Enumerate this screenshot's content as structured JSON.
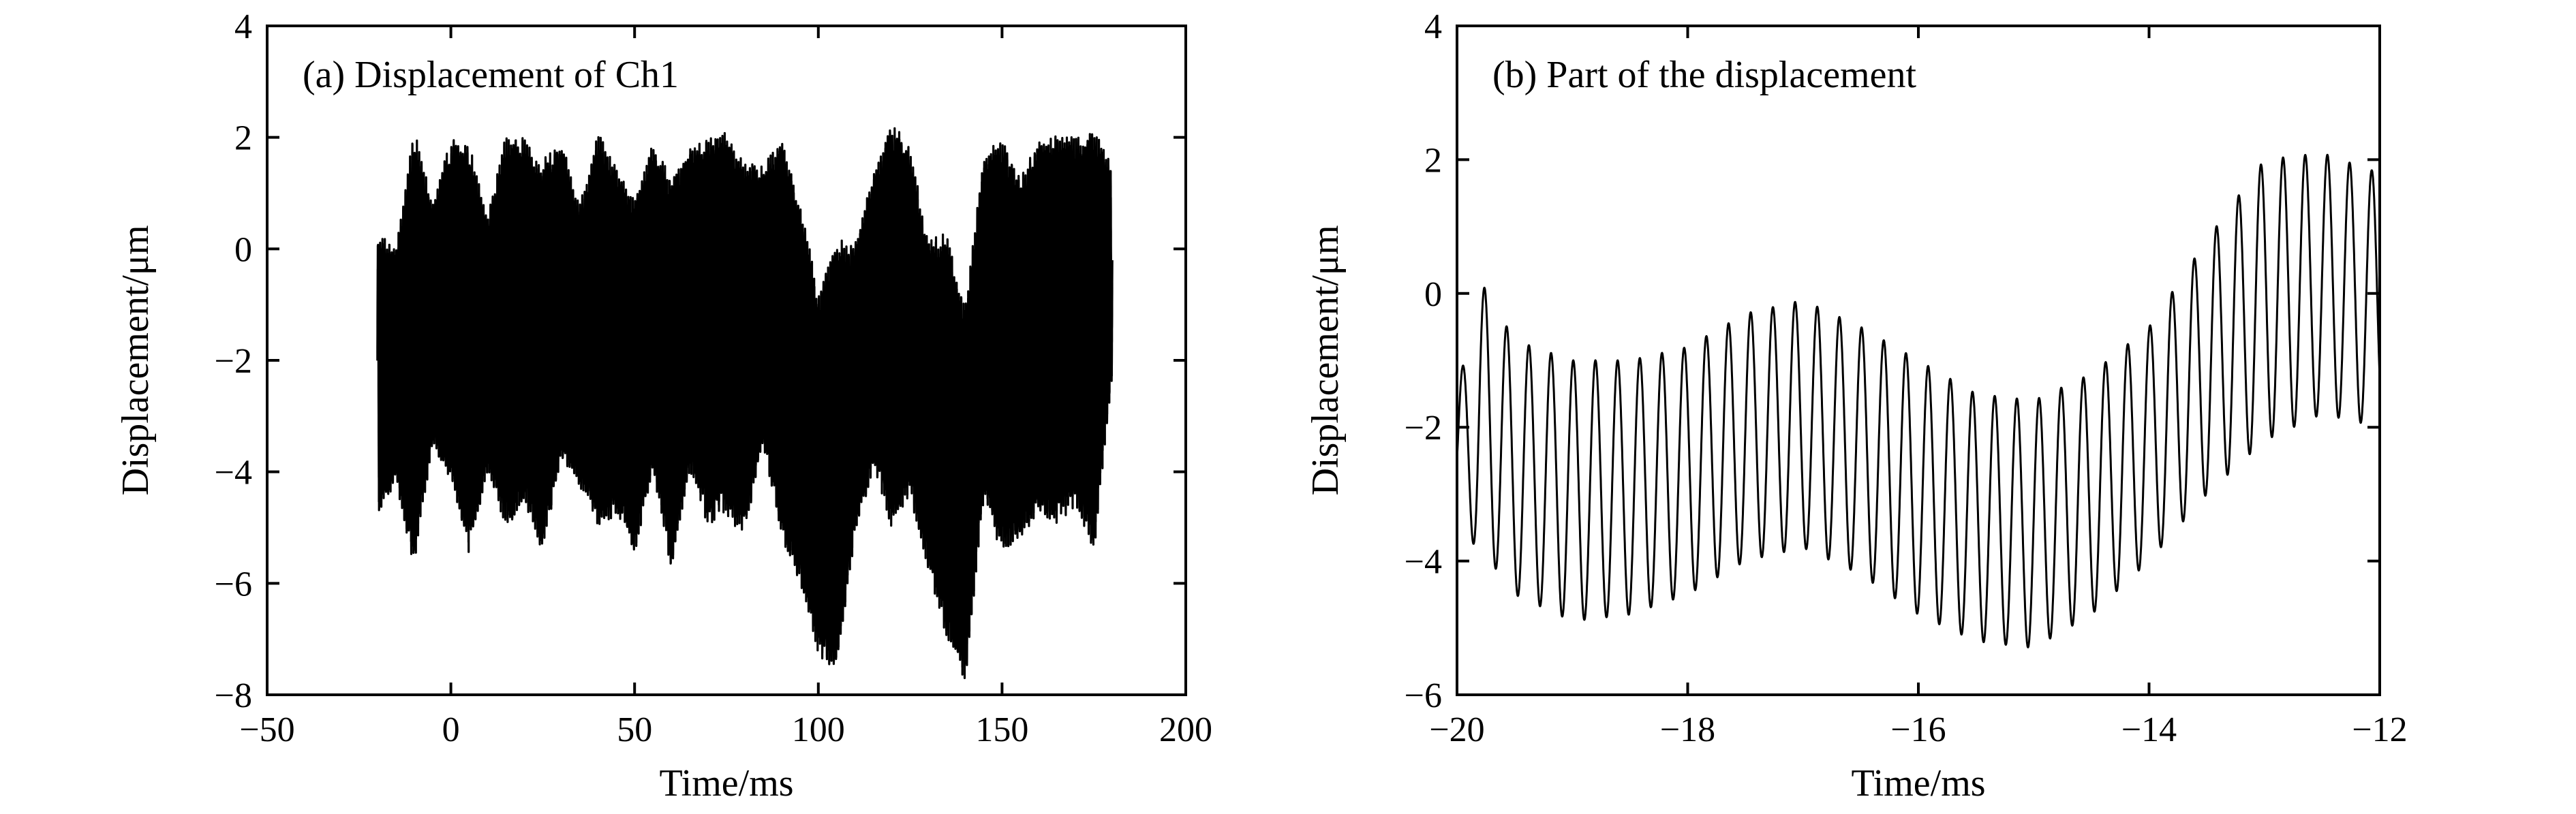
{
  "chart_data": [
    {
      "type": "line",
      "title": "(a) Displacement of Ch1",
      "xlabel": "Time/ms",
      "ylabel": "Displacement/μm",
      "xlim": [
        -50,
        200
      ],
      "ylim": [
        -8,
        4
      ],
      "xticks": [
        -50,
        0,
        50,
        100,
        150,
        200
      ],
      "yticks": [
        -8,
        -6,
        -4,
        -2,
        0,
        2,
        4
      ],
      "xtick_labels": [
        "−50",
        "0",
        "50",
        "100",
        "150",
        "200"
      ],
      "ytick_labels": [
        "−8",
        "−6",
        "−4",
        "−2",
        "0",
        "2",
        "4"
      ],
      "grid": false,
      "series": [
        {
          "x": [
            -20,
            -15,
            -10,
            -5,
            0,
            5,
            10,
            15,
            20,
            25,
            30,
            35,
            40,
            45,
            50,
            55,
            60,
            65,
            70,
            75,
            80,
            85,
            90,
            95,
            100,
            105,
            110,
            115,
            120,
            125,
            130,
            135,
            140,
            145,
            150,
            155,
            160,
            165,
            170,
            175,
            180
          ],
          "upper": [
            0.3,
            0.0,
            2.2,
            0.8,
            2.0,
            1.9,
            0.6,
            2.1,
            2.0,
            1.6,
            2.0,
            0.8,
            2.1,
            1.5,
            0.9,
            1.9,
            1.3,
            1.8,
            2.0,
            2.1,
            1.6,
            1.5,
            2.0,
            1.0,
            -0.8,
            0.2,
            0.1,
            1.4,
            2.3,
            1.8,
            0.2,
            0.3,
            -1.0,
            1.7,
            2.0,
            1.3,
            2.0,
            2.1,
            2.0,
            2.2,
            1.5
          ],
          "lower": [
            -4.8,
            -4.2,
            -5.8,
            -3.5,
            -4.2,
            -5.5,
            -4.0,
            -5.0,
            -4.6,
            -5.5,
            -3.8,
            -4.3,
            -5.0,
            -4.8,
            -5.5,
            -4.0,
            -5.8,
            -4.0,
            -5.0,
            -4.8,
            -5.2,
            -3.5,
            -5.3,
            -6.0,
            -7.3,
            -7.6,
            -5.2,
            -4.0,
            -5.0,
            -4.5,
            -5.8,
            -7.0,
            -7.8,
            -4.5,
            -5.5,
            -5.2,
            -4.8,
            -5.0,
            -4.6,
            -5.5,
            -2.3
          ]
        }
      ]
    },
    {
      "type": "line",
      "title": "(b) Part of the displacement",
      "xlabel": "Time/ms",
      "ylabel": "Displacement/μm",
      "xlim": [
        -20,
        -12
      ],
      "ylim": [
        -6,
        4
      ],
      "xticks": [
        -20,
        -18,
        -16,
        -14,
        -12
      ],
      "yticks": [
        -6,
        -4,
        -2,
        0,
        2,
        4
      ],
      "xtick_labels": [
        "−20",
        "−18",
        "−16",
        "−14",
        "−12"
      ],
      "ytick_labels": [
        "−6",
        "−4",
        "−2",
        "0",
        "2",
        "4"
      ],
      "grid": false,
      "oscillation_frequency_khz": 5.2,
      "series": [
        {
          "x": [
            -20,
            -19.8,
            -19.5,
            -19.0,
            -18.5,
            -18.0,
            -17.5,
            -17.0,
            -16.5,
            -16.0,
            -15.5,
            -15.0,
            -14.5,
            -14.0,
            -13.5,
            -13.0,
            -12.5,
            -12.0
          ],
          "upper": [
            -1.5,
            0.2,
            -0.7,
            -1.0,
            -1.0,
            -0.8,
            -0.3,
            -0.1,
            -0.5,
            -1.0,
            -1.5,
            -1.6,
            -1.2,
            -0.5,
            0.8,
            2.0,
            2.1,
            1.8
          ],
          "lower": [
            -3.6,
            -3.8,
            -4.5,
            -4.9,
            -4.8,
            -4.5,
            -4.0,
            -3.8,
            -4.2,
            -4.8,
            -5.2,
            -5.3,
            -4.8,
            -4.0,
            -3.0,
            -2.2,
            -1.8,
            -2.0
          ]
        }
      ]
    }
  ]
}
